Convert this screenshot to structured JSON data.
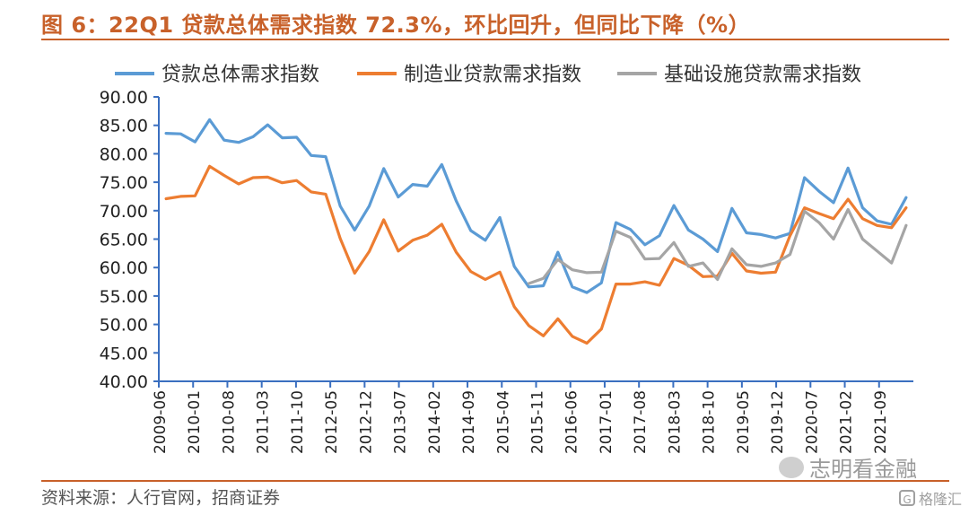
{
  "title": "图 6：22Q1 贷款总体需求指数 72.3%，环比回升，但同比下降（%）",
  "source": "资料来源：人行官网，招商证券",
  "watermark": {
    "text": "志明看金融",
    "icon": "wechat-icon"
  },
  "watermark2": {
    "text": "格隆汇",
    "icon": "gelonghui-logo-icon",
    "glyph": "G"
  },
  "colors": {
    "total": "#5b9bd5",
    "manufacturing": "#ed7d31",
    "infrastructure": "#a5a5a5",
    "title": "#c8612a"
  },
  "chart_data": {
    "type": "line",
    "x": [
      "2009-06",
      "2009-09",
      "2009-12",
      "2010-03",
      "2010-06",
      "2010-09",
      "2010-12",
      "2011-03",
      "2011-06",
      "2011-09",
      "2011-12",
      "2012-03",
      "2012-06",
      "2012-09",
      "2012-12",
      "2013-03",
      "2013-06",
      "2013-09",
      "2013-12",
      "2014-03",
      "2014-06",
      "2014-09",
      "2014-12",
      "2015-03",
      "2015-06",
      "2015-09",
      "2015-12",
      "2016-03",
      "2016-06",
      "2016-09",
      "2016-12",
      "2017-03",
      "2017-06",
      "2017-09",
      "2017-12",
      "2018-03",
      "2018-06",
      "2018-09",
      "2018-12",
      "2019-03",
      "2019-06",
      "2019-09",
      "2019-12",
      "2020-03",
      "2020-06",
      "2020-09",
      "2020-12",
      "2021-03",
      "2021-06",
      "2021-09",
      "2021-12",
      "2022-03"
    ],
    "tick_labels": [
      "2009-06",
      "2010-01",
      "2010-08",
      "2011-03",
      "2011-10",
      "2012-05",
      "2012-12",
      "2013-07",
      "2014-02",
      "2014-09",
      "2015-04",
      "2015-11",
      "2016-06",
      "2017-01",
      "2017-08",
      "2018-03",
      "2018-10",
      "2019-05",
      "2019-12",
      "2020-07",
      "2021-02",
      "2021-09"
    ],
    "ylim": [
      40,
      90
    ],
    "yticks": [
      "40.00",
      "45.00",
      "50.00",
      "55.00",
      "60.00",
      "65.00",
      "70.00",
      "75.00",
      "80.00",
      "85.00",
      "90.00"
    ],
    "legend_position": "top",
    "series": [
      {
        "name": "贷款总体需求指数",
        "color": "#5b9bd5",
        "values": [
          83.6,
          83.5,
          82.1,
          86.0,
          82.4,
          82.0,
          83.0,
          85.1,
          82.8,
          82.9,
          79.7,
          79.5,
          70.8,
          66.6,
          70.8,
          77.4,
          72.4,
          74.6,
          74.3,
          78.1,
          71.7,
          66.5,
          64.8,
          68.8,
          60.2,
          56.6,
          56.8,
          62.7,
          56.6,
          55.6,
          57.3,
          67.9,
          66.7,
          64.0,
          65.6,
          70.9,
          66.6,
          65.0,
          62.8,
          70.4,
          66.1,
          65.8,
          65.2,
          66.0,
          75.8,
          73.4,
          71.4,
          77.5,
          70.5,
          68.2,
          67.6,
          72.3
        ]
      },
      {
        "name": "制造业贷款需求指数",
        "color": "#ed7d31",
        "values": [
          72.1,
          72.5,
          72.6,
          77.8,
          76.2,
          74.7,
          75.8,
          75.9,
          74.9,
          75.3,
          73.3,
          72.9,
          65.1,
          59.0,
          62.8,
          68.4,
          62.9,
          64.8,
          65.7,
          67.6,
          62.7,
          59.3,
          57.9,
          59.2,
          53.1,
          49.8,
          48.0,
          51.0,
          47.9,
          46.7,
          49.2,
          57.1,
          57.1,
          57.5,
          56.9,
          61.6,
          60.4,
          58.4,
          58.5,
          62.5,
          59.4,
          59.0,
          59.2,
          65.6,
          70.5,
          69.5,
          68.6,
          72.0,
          68.6,
          67.4,
          67.0,
          70.5
        ]
      },
      {
        "name": "基础设施贷款需求指数",
        "color": "#a5a5a5",
        "values": [
          null,
          null,
          null,
          null,
          null,
          null,
          null,
          null,
          null,
          null,
          null,
          null,
          null,
          null,
          null,
          null,
          null,
          null,
          null,
          null,
          null,
          null,
          null,
          null,
          null,
          57.2,
          58.1,
          61.4,
          59.6,
          59.1,
          59.2,
          66.4,
          65.3,
          61.5,
          61.6,
          64.4,
          60.2,
          60.8,
          57.9,
          63.3,
          60.5,
          60.2,
          60.8,
          62.3,
          69.9,
          67.9,
          65.0,
          70.2,
          65.0,
          62.9,
          60.8,
          67.4
        ]
      }
    ]
  }
}
